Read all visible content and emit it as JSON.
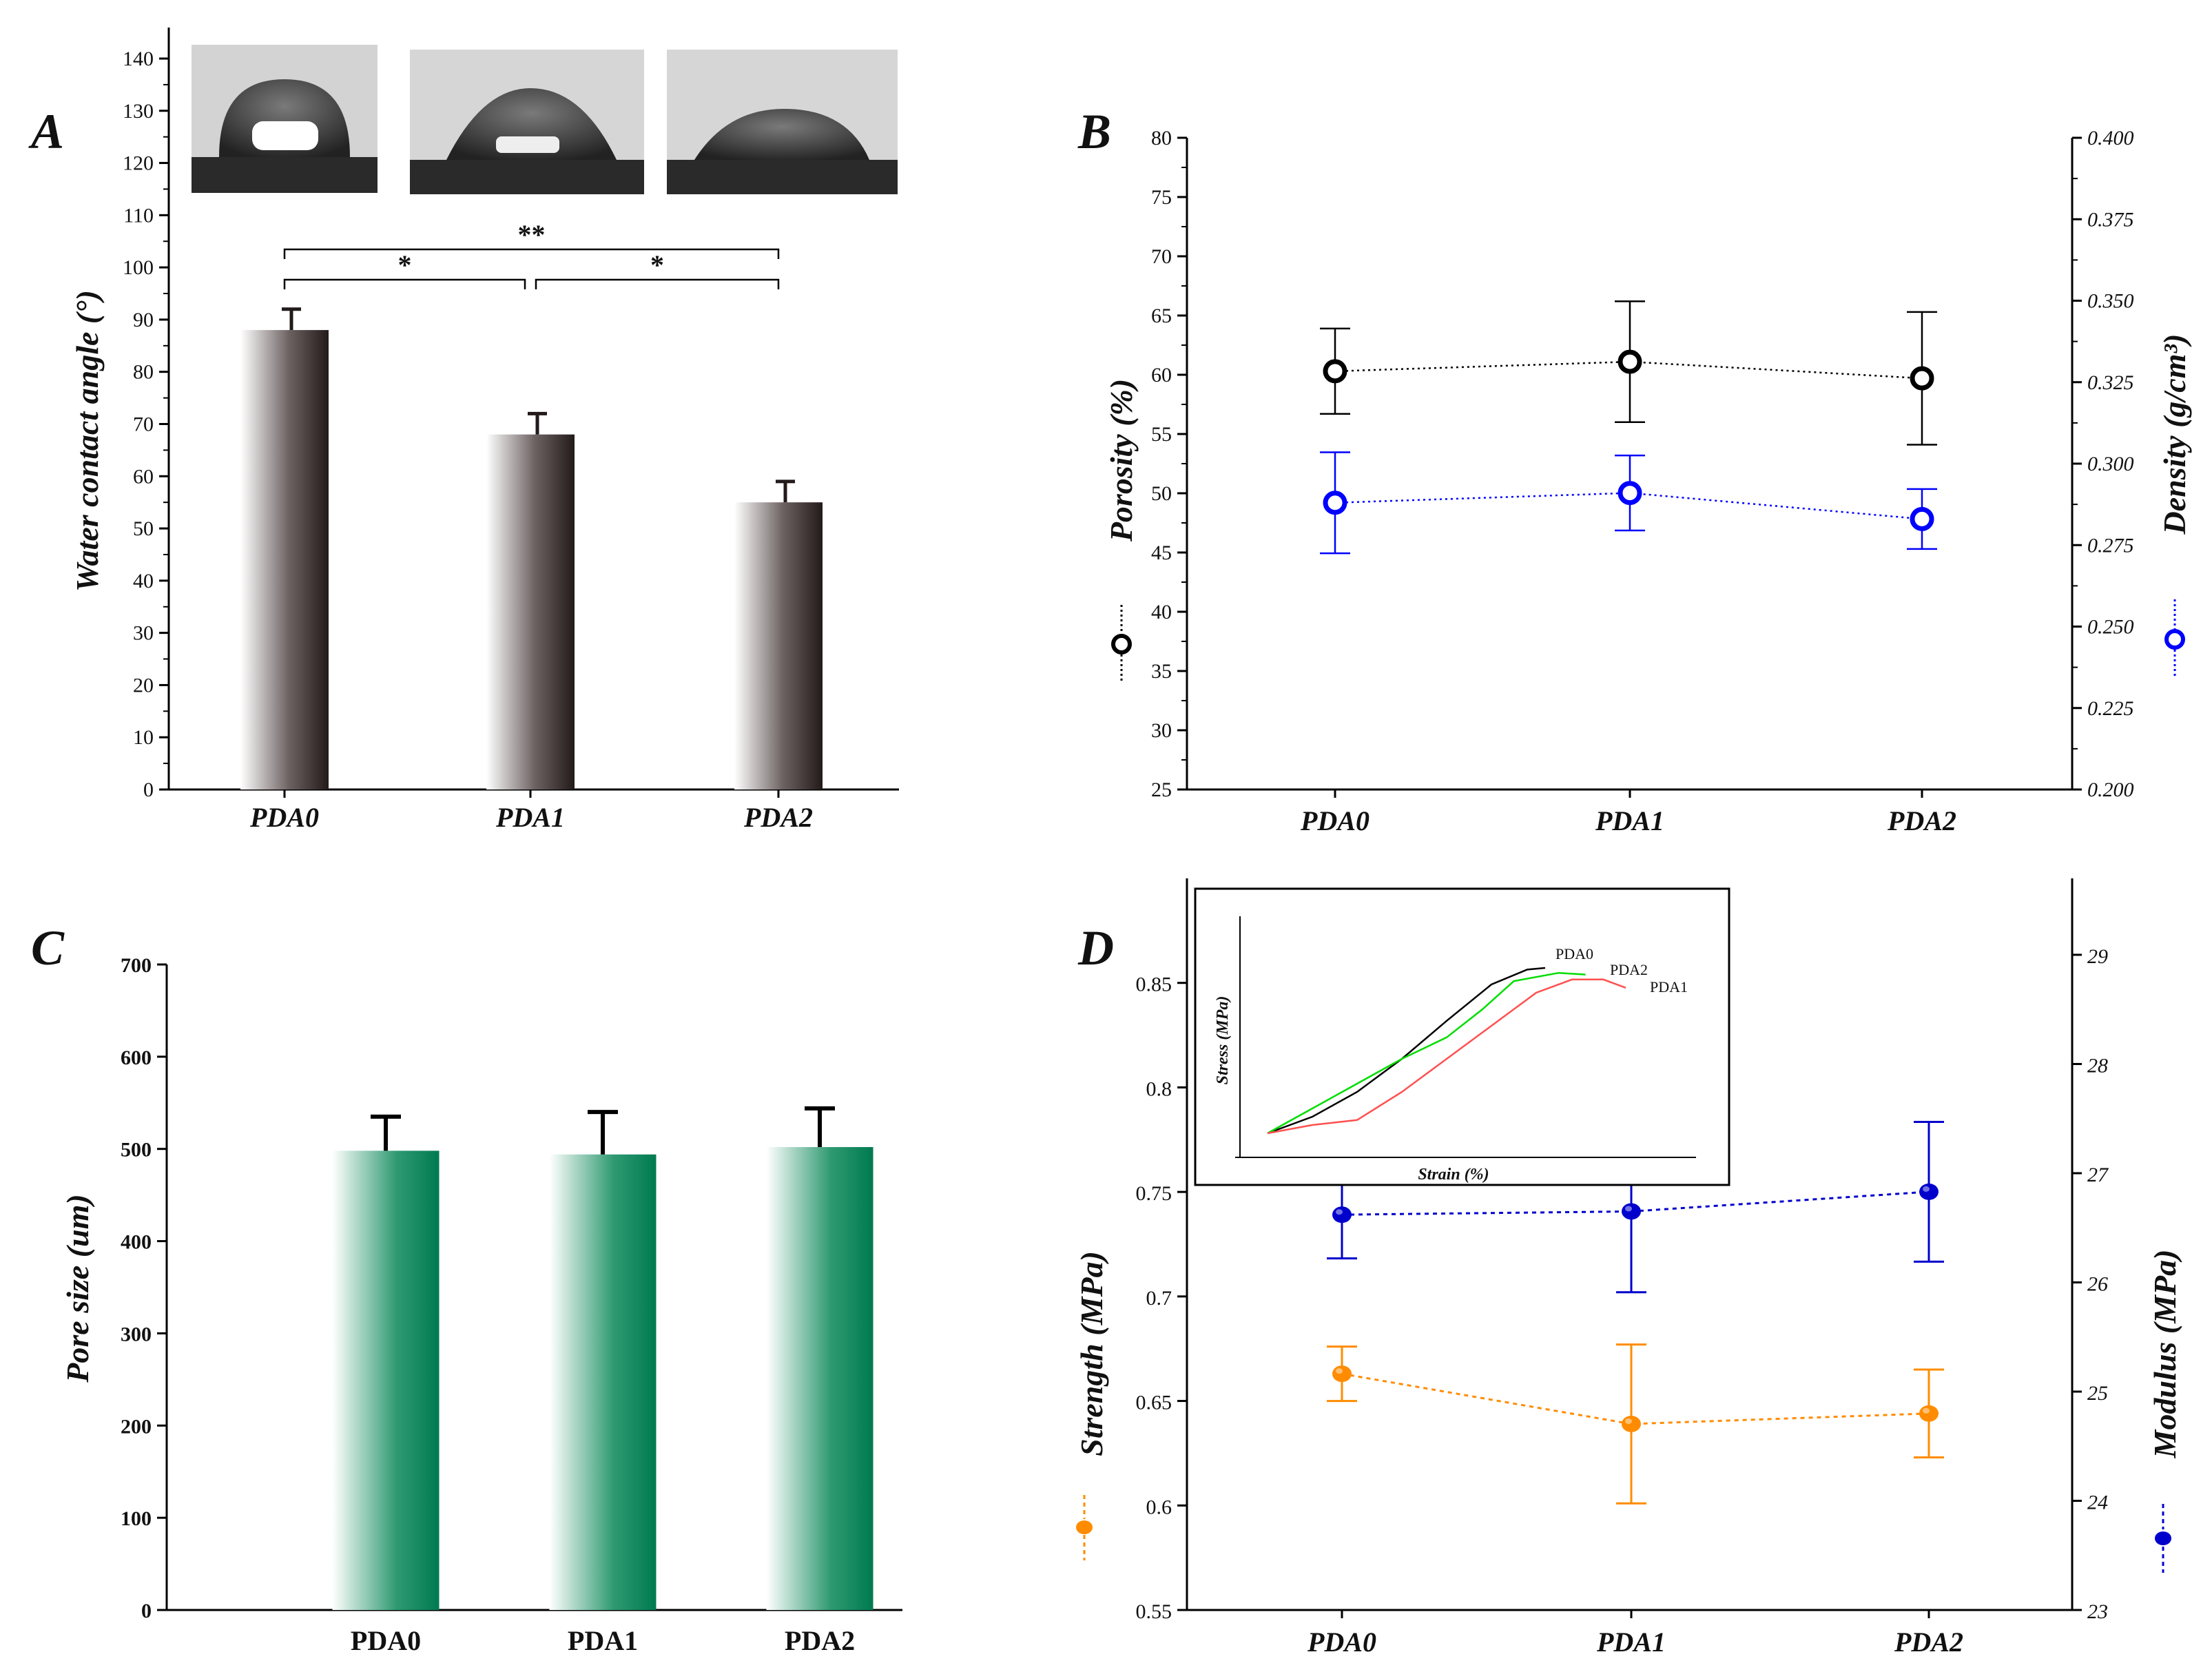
{
  "chart_data": [
    {
      "panel": "A",
      "type": "bar",
      "categories": [
        "PDA0",
        "PDA1",
        "PDA2"
      ],
      "values": [
        88,
        68,
        55
      ],
      "errors": [
        4,
        4,
        4
      ],
      "ylabel": "Water contact angle (°)",
      "ylim": [
        0,
        140
      ],
      "yticks": [
        "0",
        "10",
        "20",
        "30",
        "40",
        "50",
        "60",
        "70",
        "80",
        "90",
        "100",
        "110",
        "120",
        "130",
        "140"
      ],
      "significance": [
        {
          "from": "PDA0",
          "to": "PDA1",
          "label": "*"
        },
        {
          "from": "PDA1",
          "to": "PDA2",
          "label": "*"
        },
        {
          "from": "PDA0",
          "to": "PDA2",
          "label": "**"
        }
      ],
      "colors": {
        "bar_dark": "#231a1a",
        "bar_light": "#ffffff"
      }
    },
    {
      "panel": "B",
      "type": "scatter",
      "categories": [
        "PDA0",
        "PDA1",
        "PDA2"
      ],
      "ylabel_left": "Porosity (%)",
      "ylabel_right": "Density (g/cm³)",
      "ylim_left": [
        25,
        80
      ],
      "ylim_right": [
        0.2,
        0.4
      ],
      "yticks_left": [
        "25",
        "30",
        "35",
        "40",
        "45",
        "50",
        "55",
        "60",
        "65",
        "70",
        "75",
        "80"
      ],
      "yticks_right": [
        "0.200",
        "0.225",
        "0.250",
        "0.275",
        "0.300",
        "0.325",
        "0.350",
        "0.375",
        "0.400"
      ],
      "series": [
        {
          "name": "Porosity",
          "axis": "left",
          "values": [
            60.3,
            61.1,
            59.7
          ],
          "errors": [
            3.6,
            5.1,
            5.6
          ],
          "color": "#000000"
        },
        {
          "name": "Density",
          "axis": "right",
          "values": [
            0.288,
            0.291,
            0.283
          ],
          "errors": [
            0.0155,
            0.0115,
            0.0092
          ],
          "color": "#0000ff"
        }
      ]
    },
    {
      "panel": "C",
      "type": "bar",
      "categories": [
        "PDA0",
        "PDA1",
        "PDA2"
      ],
      "values": [
        498,
        494,
        502
      ],
      "errors": [
        37,
        46,
        42
      ],
      "ylabel": "Pore size (um)",
      "ylim": [
        0,
        700
      ],
      "yticks": [
        "0",
        "100",
        "200",
        "300",
        "400",
        "500",
        "600",
        "700"
      ],
      "colors": {
        "bar_dark": "#007a50",
        "bar_light": "#ffffff"
      }
    },
    {
      "panel": "D",
      "type": "scatter",
      "categories": [
        "PDA0",
        "PDA1",
        "PDA2"
      ],
      "ylabel_left": "Strength (MPa)",
      "ylabel_right": "Modulus (MPa)",
      "ylim_left": [
        0.55,
        0.9
      ],
      "ylim_right": [
        23,
        29.7
      ],
      "yticks_left": [
        "0.55",
        "0.6",
        "0.65",
        "0.7",
        "0.75",
        "0.8",
        "0.85"
      ],
      "yticks_right": [
        "23",
        "24",
        "25",
        "26",
        "27",
        "28",
        "29"
      ],
      "series": [
        {
          "name": "Strength",
          "axis": "left",
          "values": [
            0.663,
            0.639,
            0.644
          ],
          "errors": [
            0.013,
            0.038,
            0.021
          ],
          "color": "#ff8c00"
        },
        {
          "name": "Modulus",
          "axis": "right",
          "values": [
            26.62,
            26.65,
            26.83
          ],
          "errors": [
            0.4,
            0.74,
            0.64
          ],
          "color": "#0000cd"
        }
      ],
      "inset": {
        "type": "line",
        "xlabel": "Strain (%)",
        "ylabel": "Stress (MPa)",
        "series": [
          {
            "name": "PDA0",
            "color": "#000000",
            "x": [
              0,
              0.1,
              0.2,
              0.3,
              0.4,
              0.5,
              0.58,
              0.62
            ],
            "y": [
              0,
              0.1,
              0.25,
              0.45,
              0.68,
              0.9,
              0.99,
              1.0
            ]
          },
          {
            "name": "PDA2",
            "color": "#00dd00",
            "x": [
              0,
              0.1,
              0.2,
              0.3,
              0.4,
              0.48,
              0.55,
              0.65,
              0.71
            ],
            "y": [
              0,
              0.15,
              0.3,
              0.45,
              0.58,
              0.75,
              0.92,
              0.97,
              0.96
            ]
          },
          {
            "name": "PDA1",
            "color": "#ff5050",
            "x": [
              0,
              0.1,
              0.2,
              0.3,
              0.4,
              0.5,
              0.6,
              0.68,
              0.75,
              0.8
            ],
            "y": [
              0,
              0.05,
              0.08,
              0.25,
              0.45,
              0.65,
              0.85,
              0.93,
              0.93,
              0.88
            ]
          }
        ]
      }
    }
  ]
}
